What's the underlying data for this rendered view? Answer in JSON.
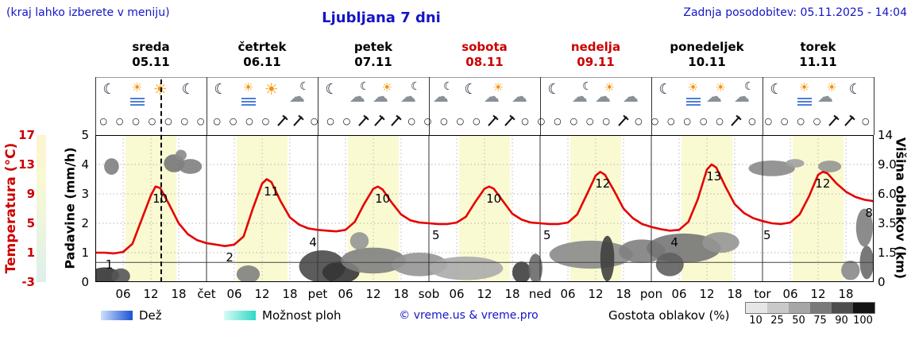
{
  "header": {
    "hint": "(kraj lahko izberete v meniju)",
    "title": "Ljubljana 7 dni",
    "updated": "Zadnja posodobitev: 05.11.2025 - 14:04"
  },
  "days": [
    {
      "name": "sreda",
      "date": "05.11",
      "highlight": false
    },
    {
      "name": "četrtek",
      "date": "06.11",
      "highlight": false
    },
    {
      "name": "petek",
      "date": "07.11",
      "highlight": false
    },
    {
      "name": "sobota",
      "date": "08.11",
      "highlight": true
    },
    {
      "name": "nedelja",
      "date": "09.11",
      "highlight": true
    },
    {
      "name": "ponedeljek",
      "date": "10.11",
      "highlight": false
    },
    {
      "name": "torek",
      "date": "11.11",
      "highlight": false
    }
  ],
  "axes": {
    "temp_label": "Temperatura (°C)",
    "temp_ticks": [
      "17",
      "13",
      "9",
      "5",
      "1",
      "-3"
    ],
    "precip_label": "Padavine (mm/h)",
    "precip_ticks": [
      "5",
      "4",
      "3",
      "2",
      "1",
      "0"
    ],
    "cloud_label": "Višina oblakov (km)",
    "cloud_ticks": [
      "14",
      "9.0",
      "6.0",
      "3.5",
      "1.5",
      "0"
    ],
    "x_ticks": [
      {
        "h": 6,
        "label": "06"
      },
      {
        "h": 12,
        "label": "12"
      },
      {
        "h": 18,
        "label": "18"
      },
      {
        "h": 24,
        "label": "čet"
      },
      {
        "h": 30,
        "label": "06"
      },
      {
        "h": 36,
        "label": "12"
      },
      {
        "h": 42,
        "label": "18"
      },
      {
        "h": 48,
        "label": "pet"
      },
      {
        "h": 54,
        "label": "06"
      },
      {
        "h": 60,
        "label": "12"
      },
      {
        "h": 66,
        "label": "18"
      },
      {
        "h": 72,
        "label": "sob"
      },
      {
        "h": 78,
        "label": "06"
      },
      {
        "h": 84,
        "label": "12"
      },
      {
        "h": 90,
        "label": "18"
      },
      {
        "h": 96,
        "label": "ned"
      },
      {
        "h": 102,
        "label": "06"
      },
      {
        "h": 108,
        "label": "12"
      },
      {
        "h": 114,
        "label": "18"
      },
      {
        "h": 120,
        "label": "pon"
      },
      {
        "h": 126,
        "label": "06"
      },
      {
        "h": 132,
        "label": "12"
      },
      {
        "h": 138,
        "label": "18"
      },
      {
        "h": 144,
        "label": "tor"
      },
      {
        "h": 150,
        "label": "06"
      },
      {
        "h": 156,
        "label": "12"
      },
      {
        "h": 162,
        "label": "18"
      }
    ]
  },
  "legend": {
    "rain": "Dež",
    "showers": "Možnost ploh",
    "copyright": "© vreme.us & vreme.pro",
    "cloud_density": "Gostota oblakov (%)",
    "density_levels": [
      "10",
      "25",
      "50",
      "75",
      "90",
      "100"
    ],
    "density_colors": [
      "#e6e6e6",
      "#c9c9c9",
      "#a6a6a6",
      "#7a7a7a",
      "#4d4d4d",
      "#141414"
    ]
  },
  "colors": {
    "blue": "#1414c8",
    "red": "#cc0000",
    "curve": "#e60000",
    "band": "#fafad2",
    "rain": "#1a53d1",
    "showers": "#2fd8c8"
  },
  "chart_data": {
    "type": "line",
    "title": "Ljubljana 7 dni",
    "x_axis": "hours from 05.11 00:00, 7 days",
    "x_range": [
      0,
      168
    ],
    "temperature_axis_c": [
      -3,
      17
    ],
    "precip_axis_mmh": [
      0,
      5
    ],
    "cloud_height_axis_km": [
      0,
      1.5,
      3.5,
      6,
      9,
      14
    ],
    "current_time_h": 14.1,
    "daylight_bands": [
      [
        6.5,
        17.5
      ],
      [
        30.5,
        41.5
      ],
      [
        54.5,
        65.5
      ],
      [
        78.5,
        89.5
      ],
      [
        102.5,
        113.5
      ],
      [
        126.5,
        137.5
      ],
      [
        150.5,
        161.5
      ]
    ],
    "temperature": {
      "points": [
        [
          0,
          1
        ],
        [
          2,
          1
        ],
        [
          4,
          0.9
        ],
        [
          6,
          1.1
        ],
        [
          8,
          2.2
        ],
        [
          10,
          5.5
        ],
        [
          12,
          8.8
        ],
        [
          13,
          10
        ],
        [
          14,
          9.8
        ],
        [
          16,
          7.5
        ],
        [
          18,
          5
        ],
        [
          20,
          3.5
        ],
        [
          22,
          2.7
        ],
        [
          24,
          2.3
        ],
        [
          26,
          2.1
        ],
        [
          28,
          1.9
        ],
        [
          30,
          2.1
        ],
        [
          32,
          3.2
        ],
        [
          34,
          7
        ],
        [
          36,
          10.4
        ],
        [
          37,
          11
        ],
        [
          38,
          10.6
        ],
        [
          40,
          8
        ],
        [
          42,
          5.8
        ],
        [
          44,
          4.8
        ],
        [
          46,
          4.3
        ],
        [
          48,
          4.1
        ],
        [
          50,
          4
        ],
        [
          52,
          3.9
        ],
        [
          54,
          4.1
        ],
        [
          56,
          5.2
        ],
        [
          58,
          7.6
        ],
        [
          60,
          9.7
        ],
        [
          61,
          10
        ],
        [
          62,
          9.6
        ],
        [
          64,
          7.8
        ],
        [
          66,
          6.2
        ],
        [
          68,
          5.4
        ],
        [
          70,
          5.1
        ],
        [
          72,
          5
        ],
        [
          74,
          4.9
        ],
        [
          76,
          4.9
        ],
        [
          78,
          5.1
        ],
        [
          80,
          5.9
        ],
        [
          82,
          7.9
        ],
        [
          84,
          9.7
        ],
        [
          85,
          10
        ],
        [
          86,
          9.7
        ],
        [
          88,
          8
        ],
        [
          90,
          6.3
        ],
        [
          92,
          5.5
        ],
        [
          94,
          5.1
        ],
        [
          96,
          5
        ],
        [
          98,
          4.9
        ],
        [
          100,
          4.9
        ],
        [
          102,
          5.1
        ],
        [
          104,
          6.2
        ],
        [
          106,
          8.8
        ],
        [
          108,
          11.5
        ],
        [
          109,
          12
        ],
        [
          110,
          11.6
        ],
        [
          112,
          9.4
        ],
        [
          114,
          7
        ],
        [
          116,
          5.7
        ],
        [
          118,
          4.9
        ],
        [
          120,
          4.5
        ],
        [
          122,
          4.2
        ],
        [
          124,
          4
        ],
        [
          126,
          4.1
        ],
        [
          128,
          5.2
        ],
        [
          130,
          8.2
        ],
        [
          132,
          12.3
        ],
        [
          133,
          13
        ],
        [
          134,
          12.6
        ],
        [
          136,
          10
        ],
        [
          138,
          7.6
        ],
        [
          140,
          6.4
        ],
        [
          142,
          5.7
        ],
        [
          144,
          5.3
        ],
        [
          146,
          5
        ],
        [
          148,
          4.9
        ],
        [
          150,
          5.1
        ],
        [
          152,
          6.2
        ],
        [
          154,
          8.6
        ],
        [
          156,
          11.6
        ],
        [
          157,
          12
        ],
        [
          158,
          11.8
        ],
        [
          160,
          10.4
        ],
        [
          162,
          9.3
        ],
        [
          164,
          8.6
        ],
        [
          166,
          8.2
        ],
        [
          168,
          8
        ]
      ],
      "labels": [
        [
          3,
          1
        ],
        [
          14,
          10
        ],
        [
          29,
          2
        ],
        [
          38,
          11
        ],
        [
          47,
          4
        ],
        [
          62,
          10
        ],
        [
          73.5,
          5
        ],
        [
          86,
          10
        ],
        [
          97.5,
          5
        ],
        [
          109.5,
          12
        ],
        [
          125,
          4
        ],
        [
          133.5,
          13
        ],
        [
          145,
          5
        ],
        [
          157,
          12
        ],
        [
          167,
          8
        ]
      ]
    },
    "reference_line_km": 1,
    "cloud_blobs": [
      [
        2,
        0.35,
        3.2,
        0.45,
        0.85
      ],
      [
        5.5,
        0.3,
        2,
        0.5,
        0.7
      ],
      [
        3.5,
        8.8,
        1.6,
        1,
        0.5
      ],
      [
        17,
        9.2,
        2.2,
        1.2,
        0.55
      ],
      [
        20.5,
        8.8,
        2.5,
        0.9,
        0.5
      ],
      [
        18.5,
        10.6,
        1.2,
        0.9,
        0.45
      ],
      [
        33,
        0.4,
        2.5,
        0.5,
        0.5
      ],
      [
        49,
        0.8,
        5,
        0.9,
        0.75
      ],
      [
        53,
        0.5,
        4,
        0.6,
        0.85
      ],
      [
        60,
        1.1,
        7,
        0.7,
        0.5
      ],
      [
        57,
        2.3,
        2,
        0.6,
        0.4
      ],
      [
        70,
        0.9,
        6,
        0.6,
        0.4
      ],
      [
        80,
        0.7,
        8,
        0.6,
        0.3
      ],
      [
        92,
        0.5,
        2,
        0.6,
        0.8
      ],
      [
        95,
        0.7,
        1.5,
        0.8,
        0.6
      ],
      [
        107,
        1.4,
        9,
        0.8,
        0.45
      ],
      [
        110.5,
        1.2,
        1.5,
        1.4,
        0.8
      ],
      [
        118,
        1.6,
        5,
        0.7,
        0.5
      ],
      [
        127,
        1.8,
        8,
        0.9,
        0.55
      ],
      [
        124,
        0.9,
        3,
        0.6,
        0.65
      ],
      [
        135,
        2.2,
        4,
        0.7,
        0.4
      ],
      [
        146,
        8.6,
        5,
        0.9,
        0.45
      ],
      [
        151,
        9.2,
        2,
        0.6,
        0.35
      ],
      [
        158.5,
        8.8,
        2.5,
        0.7,
        0.4
      ],
      [
        166,
        3.2,
        1.8,
        1.4,
        0.5
      ],
      [
        166.5,
        1,
        1.5,
        0.9,
        0.6
      ],
      [
        163,
        0.6,
        2,
        0.5,
        0.45
      ]
    ],
    "wind": [
      "c",
      "c",
      "c",
      "c",
      "c",
      "c",
      "c",
      "c",
      "c",
      "c",
      "c",
      "b",
      "b",
      "c",
      "c",
      "c",
      "b",
      "b",
      "b",
      "c",
      "c",
      "c",
      "c",
      "c",
      "b",
      "b",
      "c",
      "c",
      "c",
      "c",
      "c",
      "c",
      "b",
      "c",
      "c",
      "c",
      "c",
      "c",
      "c",
      "b",
      "c",
      "c",
      "c",
      "c",
      "c",
      "b",
      "b",
      "c"
    ],
    "icons": [
      [
        "moon",
        "fogsun",
        "sun",
        "moon"
      ],
      [
        "moon",
        "fogsun",
        "sun",
        "cloudmoon"
      ],
      [
        "moon",
        "cloudmoon",
        "suncloud",
        "cloudmoon"
      ],
      [
        "cloudmoon",
        "moon",
        "suncloud",
        "cloud"
      ],
      [
        "moon",
        "cloudmoon",
        "suncloud",
        "cloud"
      ],
      [
        "moon",
        "fogsun",
        "suncloud",
        "cloudmoon"
      ],
      [
        "moon",
        "fogsun",
        "suncloud",
        "moon"
      ]
    ]
  }
}
